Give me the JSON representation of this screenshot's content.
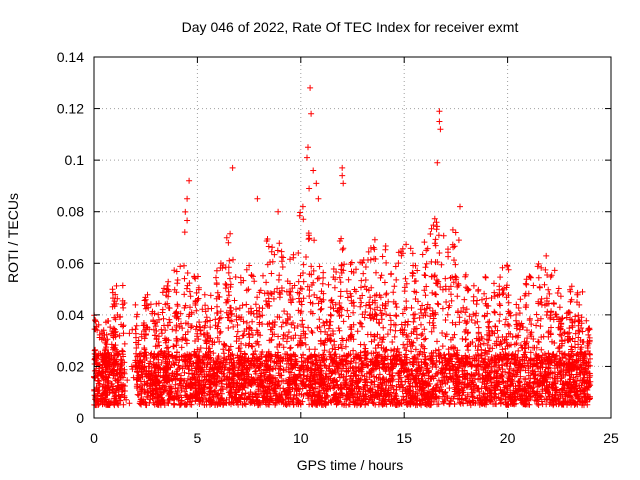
{
  "chart_data": {
    "type": "scatter",
    "title": "Day 046 of 2022, Rate Of TEC Index for receiver exmt",
    "xlabel": "GPS time / hours",
    "ylabel": "ROTI / TECUs",
    "xlim": [
      0,
      25
    ],
    "ylim": [
      0,
      0.14
    ],
    "x_ticks": [
      0,
      5,
      10,
      15,
      20,
      25
    ],
    "x_tick_labels": [
      "0",
      "5",
      "10",
      "15",
      "20",
      "25"
    ],
    "y_ticks": [
      0,
      0.02,
      0.04,
      0.06,
      0.08,
      0.1,
      0.12,
      0.14
    ],
    "y_tick_labels": [
      "0",
      "0.02",
      "0.04",
      "0.06",
      "0.08",
      "0.1",
      "0.12",
      "0.14"
    ],
    "grid": true,
    "marker": "plus",
    "color": "#ff0000",
    "peaks": [
      {
        "x": 10.45,
        "y": 0.128
      },
      {
        "x": 10.5,
        "y": 0.118
      },
      {
        "x": 16.7,
        "y": 0.119
      },
      {
        "x": 16.7,
        "y": 0.115
      },
      {
        "x": 16.75,
        "y": 0.112
      },
      {
        "x": 10.35,
        "y": 0.105
      },
      {
        "x": 10.3,
        "y": 0.101
      },
      {
        "x": 16.6,
        "y": 0.099
      },
      {
        "x": 6.7,
        "y": 0.097
      },
      {
        "x": 12.0,
        "y": 0.097
      },
      {
        "x": 10.6,
        "y": 0.096
      },
      {
        "x": 12.0,
        "y": 0.094
      },
      {
        "x": 4.6,
        "y": 0.092
      },
      {
        "x": 10.75,
        "y": 0.091
      },
      {
        "x": 12.05,
        "y": 0.091
      },
      {
        "x": 10.4,
        "y": 0.089
      },
      {
        "x": 4.5,
        "y": 0.085
      },
      {
        "x": 7.9,
        "y": 0.085
      },
      {
        "x": 10.85,
        "y": 0.085
      },
      {
        "x": 17.7,
        "y": 0.082
      },
      {
        "x": 8.9,
        "y": 0.08
      },
      {
        "x": 10.1,
        "y": 0.082
      }
    ],
    "envelope": [
      [
        0.0,
        0.04
      ],
      [
        0.5,
        0.035
      ],
      [
        1.0,
        0.058
      ],
      [
        1.5,
        0.052
      ],
      [
        2.0,
        0.045
      ],
      [
        2.5,
        0.048
      ],
      [
        3.0,
        0.045
      ],
      [
        3.5,
        0.052
      ],
      [
        4.0,
        0.058
      ],
      [
        4.5,
        0.08
      ],
      [
        5.0,
        0.06
      ],
      [
        5.5,
        0.045
      ],
      [
        6.0,
        0.062
      ],
      [
        6.5,
        0.072
      ],
      [
        7.0,
        0.055
      ],
      [
        7.5,
        0.062
      ],
      [
        8.0,
        0.05
      ],
      [
        8.5,
        0.07
      ],
      [
        9.0,
        0.068
      ],
      [
        9.5,
        0.065
      ],
      [
        10.0,
        0.08
      ],
      [
        10.5,
        0.072
      ],
      [
        11.0,
        0.062
      ],
      [
        11.5,
        0.055
      ],
      [
        12.0,
        0.07
      ],
      [
        12.5,
        0.065
      ],
      [
        13.0,
        0.062
      ],
      [
        13.5,
        0.07
      ],
      [
        14.0,
        0.07
      ],
      [
        14.5,
        0.062
      ],
      [
        15.0,
        0.07
      ],
      [
        15.5,
        0.065
      ],
      [
        16.0,
        0.07
      ],
      [
        16.5,
        0.08
      ],
      [
        17.0,
        0.072
      ],
      [
        17.5,
        0.075
      ],
      [
        18.0,
        0.058
      ],
      [
        18.5,
        0.052
      ],
      [
        19.0,
        0.055
      ],
      [
        19.5,
        0.055
      ],
      [
        20.0,
        0.062
      ],
      [
        20.5,
        0.048
      ],
      [
        21.0,
        0.055
      ],
      [
        21.5,
        0.062
      ],
      [
        22.0,
        0.068
      ],
      [
        22.5,
        0.052
      ],
      [
        23.0,
        0.058
      ],
      [
        23.5,
        0.05
      ],
      [
        24.0,
        0.035
      ]
    ],
    "gaps": [
      [
        1.5,
        2.0
      ]
    ],
    "x_range_data": [
      0,
      24
    ],
    "baseline_range": [
      0.005,
      0.025
    ]
  }
}
